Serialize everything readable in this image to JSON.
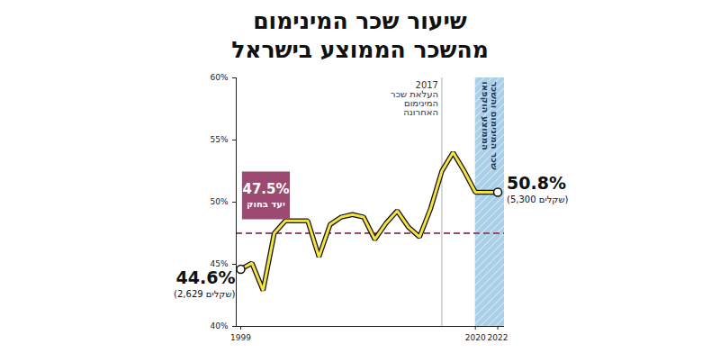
{
  "chart_data": {
    "type": "line",
    "title": [
      "שיעור שכר המינימום",
      "מהשכר הממוצע בישראל"
    ],
    "x": [
      1999,
      2000,
      2001,
      2002,
      2003,
      2004,
      2005,
      2006,
      2007,
      2008,
      2009,
      2010,
      2011,
      2012,
      2013,
      2014,
      2015,
      2016,
      2017,
      2018,
      2019,
      2020,
      2021,
      2022
    ],
    "values": [
      44.6,
      45.1,
      42.9,
      47.5,
      48.5,
      48.5,
      48.5,
      45.6,
      48.2,
      48.8,
      49.0,
      48.8,
      47.0,
      48.3,
      49.3,
      48.0,
      47.2,
      49.5,
      52.5,
      54.0,
      52.5,
      50.8,
      50.8,
      50.8
    ],
    "color": "#f4e33f",
    "xlim": [
      1998.6,
      2022.6
    ],
    "xticks": [
      1999,
      2020,
      2022
    ],
    "ylim": [
      40,
      60
    ],
    "yticks": [
      {
        "value": 40,
        "label": "40%"
      },
      {
        "value": 45,
        "label": "45%"
      },
      {
        "value": 50,
        "label": "50%"
      },
      {
        "value": 55,
        "label": "55%"
      },
      {
        "value": 60,
        "label": "60%"
      }
    ],
    "grid": false,
    "target": {
      "value": 47.5,
      "label": "47.5%",
      "text": "יעד בחוק",
      "color": "#9c4a72"
    },
    "point_labels": [
      {
        "x": 1999,
        "label": "44.6%",
        "note": "(2,629 שקלים)"
      },
      {
        "x": 2022,
        "label": "50.8%",
        "note": "(5,300 שקלים)"
      }
    ],
    "annotations": [
      {
        "x": 2017,
        "text": "2017\nהעלאת שכר\nהמינימום\nהאחרונה"
      }
    ],
    "highlight": {
      "from": 2020,
      "to": 2022.6,
      "text": "שכר המינימום והשכר\nהממוצע הוקפאו",
      "color": "#a9d0e6"
    }
  }
}
